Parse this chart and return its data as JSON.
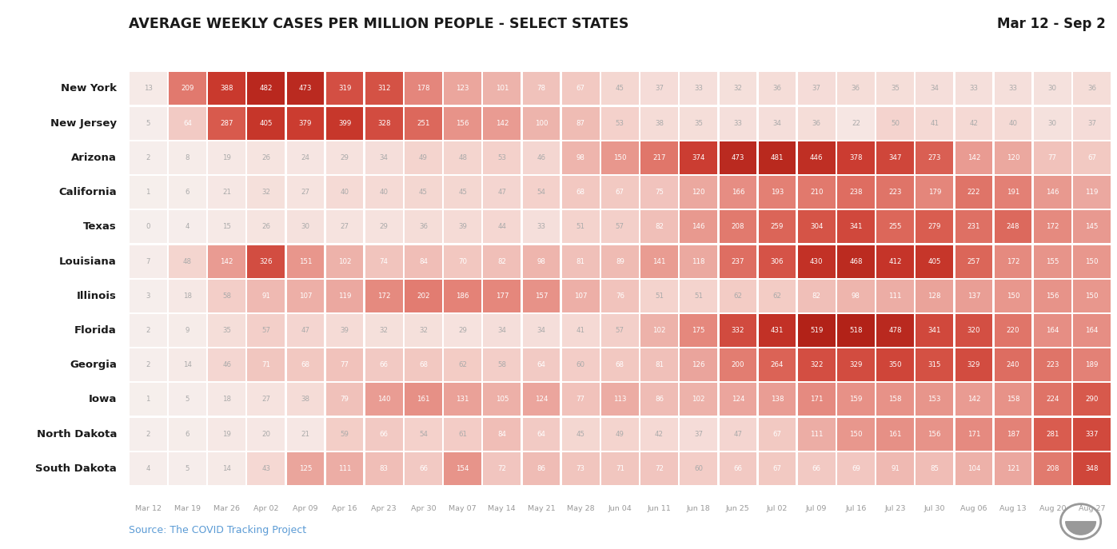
{
  "title": "AVERAGE WEEKLY CASES PER MILLION PEOPLE - SELECT STATES",
  "date_range": "Mar 12 - Sep 2",
  "source": "Source: The COVID Tracking Project",
  "states": [
    "New York",
    "New Jersey",
    "Arizona",
    "California",
    "Texas",
    "Louisiana",
    "Illinois",
    "Florida",
    "Georgia",
    "Iowa",
    "North Dakota",
    "South Dakota"
  ],
  "columns": [
    "Mar 12",
    "Mar 19",
    "Mar 26",
    "Apr 02",
    "Apr 09",
    "Apr 16",
    "Apr 23",
    "Apr 30",
    "May 07",
    "May 14",
    "May 21",
    "May 28",
    "Jun 04",
    "Jun 11",
    "Jun 18",
    "Jun 25",
    "Jul 02",
    "Jul 09",
    "Jul 16",
    "Jul 23",
    "Jul 30",
    "Aug 06",
    "Aug 13",
    "Aug 20",
    "Aug 27"
  ],
  "values": [
    [
      13,
      209,
      388,
      482,
      473,
      319,
      312,
      178,
      123,
      101,
      78,
      67,
      45,
      37,
      33,
      32,
      36,
      37,
      36,
      35,
      34,
      33,
      33,
      30,
      36
    ],
    [
      5,
      64,
      287,
      405,
      379,
      399,
      328,
      251,
      156,
      142,
      100,
      87,
      53,
      38,
      35,
      33,
      34,
      36,
      22,
      50,
      41,
      42,
      40,
      30,
      37
    ],
    [
      2,
      8,
      19,
      26,
      24,
      29,
      34,
      49,
      48,
      53,
      46,
      98,
      150,
      217,
      374,
      473,
      481,
      446,
      378,
      347,
      273,
      142,
      120,
      77,
      67
    ],
    [
      1,
      6,
      21,
      32,
      27,
      40,
      40,
      45,
      45,
      47,
      54,
      68,
      67,
      75,
      120,
      166,
      193,
      210,
      238,
      223,
      179,
      222,
      191,
      146,
      119
    ],
    [
      0,
      4,
      15,
      26,
      30,
      27,
      29,
      36,
      39,
      44,
      33,
      51,
      57,
      82,
      146,
      208,
      259,
      304,
      341,
      255,
      279,
      231,
      248,
      172,
      145
    ],
    [
      7,
      48,
      142,
      326,
      151,
      102,
      74,
      84,
      70,
      82,
      98,
      81,
      89,
      141,
      118,
      237,
      306,
      430,
      468,
      412,
      405,
      257,
      172,
      155,
      150
    ],
    [
      3,
      18,
      58,
      91,
      107,
      119,
      172,
      202,
      186,
      177,
      157,
      107,
      76,
      51,
      51,
      62,
      62,
      82,
      98,
      111,
      128,
      137,
      150,
      156,
      150
    ],
    [
      2,
      9,
      35,
      57,
      47,
      39,
      32,
      32,
      29,
      34,
      34,
      41,
      57,
      102,
      175,
      332,
      431,
      519,
      518,
      478,
      341,
      320,
      220,
      164,
      164
    ],
    [
      2,
      14,
      46,
      71,
      68,
      77,
      66,
      68,
      62,
      58,
      64,
      60,
      68,
      81,
      126,
      200,
      264,
      322,
      329,
      350,
      315,
      329,
      240,
      223,
      189
    ],
    [
      1,
      5,
      18,
      27,
      38,
      79,
      140,
      161,
      131,
      105,
      124,
      77,
      113,
      86,
      102,
      124,
      138,
      171,
      159,
      158,
      153,
      142,
      158,
      224,
      290
    ],
    [
      2,
      6,
      19,
      20,
      21,
      59,
      66,
      54,
      61,
      84,
      64,
      45,
      49,
      42,
      37,
      47,
      67,
      111,
      150,
      161,
      156,
      171,
      187,
      281,
      337
    ],
    [
      4,
      5,
      14,
      43,
      125,
      111,
      83,
      66,
      154,
      72,
      86,
      73,
      71,
      72,
      60,
      66,
      67,
      66,
      69,
      91,
      85,
      104,
      121,
      208,
      348
    ]
  ],
  "vmax": 520,
  "background_color": "#ffffff",
  "title_color": "#1a1a1a",
  "source_color": "#5b9bd5",
  "state_label_color": "#1a1a1a",
  "col_label_color": "#999999",
  "date_range_color": "#1a1a1a",
  "color_stops": [
    [
      0,
      [
        0.965,
        0.937,
        0.929
      ]
    ],
    [
      0.04,
      [
        0.965,
        0.906,
        0.894
      ]
    ],
    [
      0.1,
      [
        0.957,
        0.824,
        0.8
      ]
    ],
    [
      0.2,
      [
        0.929,
        0.694,
        0.663
      ]
    ],
    [
      0.35,
      [
        0.894,
        0.518,
        0.475
      ]
    ],
    [
      0.55,
      [
        0.847,
        0.353,
        0.302
      ]
    ],
    [
      0.75,
      [
        0.788,
        0.22,
        0.176
      ]
    ],
    [
      1.0,
      [
        0.698,
        0.133,
        0.094
      ]
    ]
  ]
}
